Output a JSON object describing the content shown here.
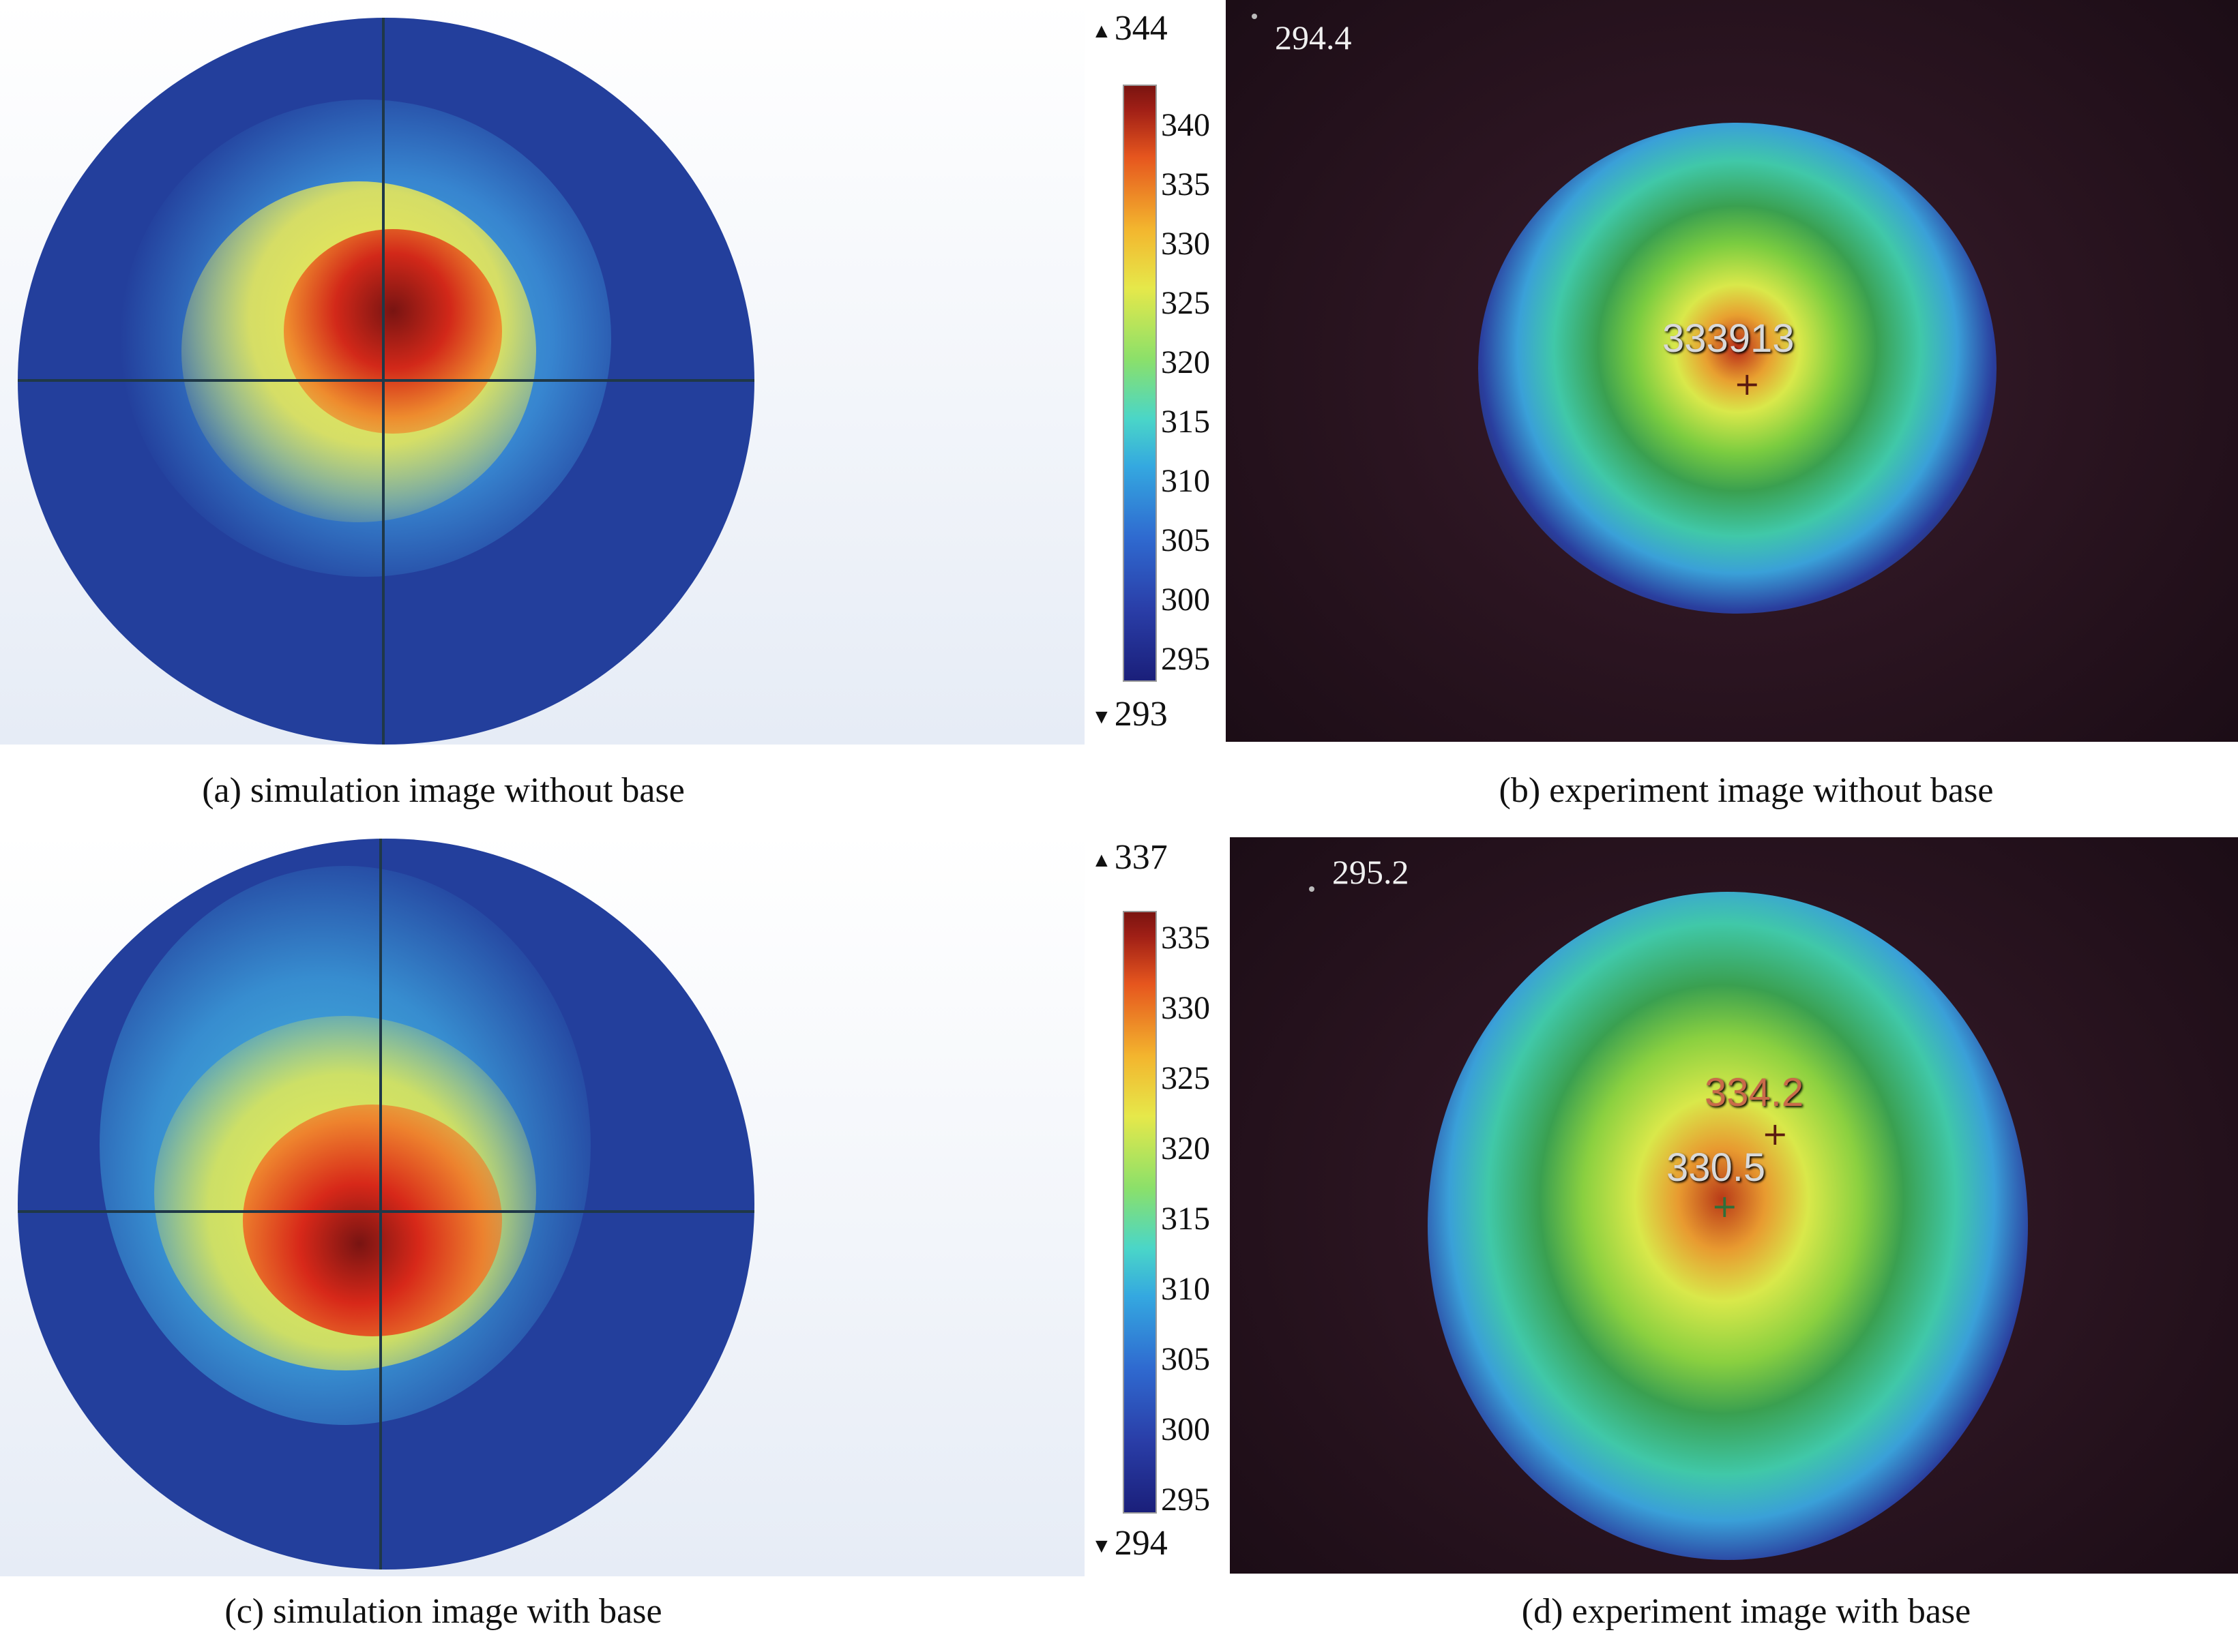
{
  "panels": {
    "a": {
      "caption": "(a) simulation image without base",
      "colorbar": {
        "max": "344",
        "min": "293",
        "ticks": [
          "340",
          "335",
          "330",
          "325",
          "320",
          "315",
          "310",
          "305",
          "300",
          "295"
        ]
      }
    },
    "b": {
      "caption": "(b) experiment image without base",
      "corner_reading": "294.4",
      "hot_reading": "333913"
    },
    "c": {
      "caption": "(c) simulation image with base",
      "colorbar": {
        "max": "337",
        "min": "294",
        "ticks": [
          "335",
          "330",
          "325",
          "320",
          "315",
          "310",
          "305",
          "300",
          "295"
        ]
      }
    },
    "d": {
      "caption": "(d) experiment image with base",
      "corner_reading": "295.2",
      "hot_reading_1": "334.2",
      "hot_reading_2": "330.5"
    }
  },
  "icons": {
    "max_arrow": "▲",
    "min_arrow": "▼",
    "spot_marker": "+"
  },
  "colors": {
    "cold": "#1a1f7a",
    "cool": "#34a8e0",
    "mid": "#8be06a",
    "warm": "#e6e84a",
    "hot": "#e6561e",
    "hottest": "#7a1410",
    "ring_magenta": "#d24fd8"
  }
}
